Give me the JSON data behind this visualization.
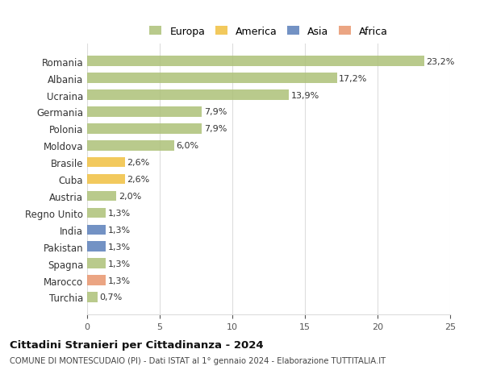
{
  "countries": [
    "Romania",
    "Albania",
    "Ucraina",
    "Germania",
    "Polonia",
    "Moldova",
    "Brasile",
    "Cuba",
    "Austria",
    "Regno Unito",
    "India",
    "Pakistan",
    "Spagna",
    "Marocco",
    "Turchia"
  ],
  "values": [
    23.2,
    17.2,
    13.9,
    7.9,
    7.9,
    6.0,
    2.6,
    2.6,
    2.0,
    1.3,
    1.3,
    1.3,
    1.3,
    1.3,
    0.7
  ],
  "continents": [
    "Europa",
    "Europa",
    "Europa",
    "Europa",
    "Europa",
    "Europa",
    "America",
    "America",
    "Europa",
    "Europa",
    "Asia",
    "Asia",
    "Europa",
    "Africa",
    "Europa"
  ],
  "colors": {
    "Europa": "#adc178",
    "America": "#f0c040",
    "Asia": "#5b7fba",
    "Africa": "#e8956d"
  },
  "legend_labels": [
    "Europa",
    "America",
    "Asia",
    "Africa"
  ],
  "title": "Cittadini Stranieri per Cittadinanza - 2024",
  "subtitle": "COMUNE DI MONTESCUDAIO (PI) - Dati ISTAT al 1° gennaio 2024 - Elaborazione TUTTITALIA.IT",
  "xlim": [
    0,
    25
  ],
  "xticks": [
    0,
    5,
    10,
    15,
    20,
    25
  ],
  "background_color": "#ffffff",
  "grid_color": "#dddddd",
  "bar_alpha": 0.85
}
